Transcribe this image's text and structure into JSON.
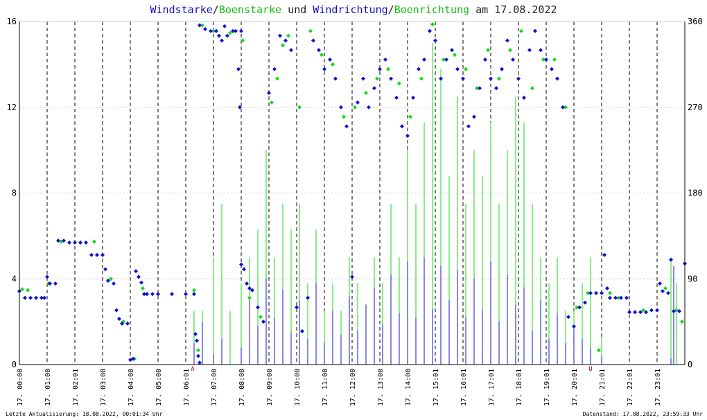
{
  "title": {
    "part1": "Windstarke",
    "sep1": "/",
    "part2": "Boenstarke",
    "part3": " und ",
    "part4": "Windrichtung",
    "sep2": "/",
    "part5": "Boenrichtung",
    "part6": " am 17.08.2022"
  },
  "footer": {
    "left": "Letzte Aktualisierung: 18.08.2022, 00:01:34 Uhr",
    "right": "Datenstand: 17.08.2022, 23:59:33 Uhr"
  },
  "colors": {
    "wind": "#1010d0",
    "gust": "#10dd10",
    "grid": "#c8c8c8",
    "hour_line": "#000000",
    "sun_marker": "#cc0000"
  },
  "chart_data": {
    "type": "scatter",
    "x_unit": "hour of day",
    "xlim": [
      0,
      24
    ],
    "y_left_label": "",
    "y_left_lim": [
      0,
      16
    ],
    "y_left_ticks": [
      0,
      4,
      8,
      12,
      16
    ],
    "y_right_lim": [
      0,
      360
    ],
    "y_right_ticks": [
      0,
      90,
      180,
      270,
      360
    ],
    "x_tick_labels": [
      "17. 00:00",
      "17. 01:00",
      "17. 02:01",
      "17. 03:00",
      "17. 04:00",
      "17. 05:00",
      "17. 06:01",
      "17. 07:00",
      "17. 08:00",
      "17. 09:00",
      "17. 10:00",
      "17. 11:00",
      "17. 12:00",
      "17. 13:00",
      "17. 14:00",
      "17. 15:01",
      "17. 16:01",
      "17. 17:01",
      "17. 18:01",
      "17. 19:01",
      "17. 20:01",
      "17. 21:01",
      "17. 22:01",
      "17. 23:01"
    ],
    "sun_markers": [
      {
        "label": "A",
        "hour": 6.25
      },
      {
        "label": "U",
        "hour": 20.6
      }
    ],
    "direction_series": [
      {
        "name": "Windrichtung",
        "points": [
          [
            0.0,
            77
          ],
          [
            0.2,
            70
          ],
          [
            0.4,
            70
          ],
          [
            0.6,
            70
          ],
          [
            0.8,
            70
          ],
          [
            0.9,
            70
          ],
          [
            1.0,
            92
          ],
          [
            1.1,
            85
          ],
          [
            1.3,
            85
          ],
          [
            1.4,
            130
          ],
          [
            1.6,
            130
          ],
          [
            1.8,
            128
          ],
          [
            2.0,
            128
          ],
          [
            2.2,
            128
          ],
          [
            2.4,
            128
          ],
          [
            2.6,
            115
          ],
          [
            2.8,
            115
          ],
          [
            3.0,
            115
          ],
          [
            3.1,
            100
          ],
          [
            3.2,
            88
          ],
          [
            3.4,
            85
          ],
          [
            3.5,
            57
          ],
          [
            3.6,
            48
          ],
          [
            3.7,
            43
          ],
          [
            3.9,
            43
          ],
          [
            4.0,
            5
          ],
          [
            4.1,
            6
          ],
          [
            4.2,
            98
          ],
          [
            4.3,
            92
          ],
          [
            4.4,
            86
          ],
          [
            4.5,
            74
          ],
          [
            4.6,
            74
          ],
          [
            4.8,
            74
          ],
          [
            5.0,
            74
          ],
          [
            5.5,
            74
          ],
          [
            6.0,
            74
          ],
          [
            6.3,
            74
          ],
          [
            6.35,
            32
          ],
          [
            6.4,
            25
          ],
          [
            6.45,
            9
          ],
          [
            6.5,
            2
          ],
          [
            6.5,
            356
          ],
          [
            6.7,
            352
          ],
          [
            6.9,
            350
          ],
          [
            7.1,
            350
          ],
          [
            7.2,
            345
          ],
          [
            7.3,
            340
          ],
          [
            7.4,
            355
          ],
          [
            7.5,
            345
          ],
          [
            7.7,
            350
          ],
          [
            7.8,
            350
          ],
          [
            8.0,
            350
          ],
          [
            7.9,
            310
          ],
          [
            7.95,
            270
          ],
          [
            8.0,
            105
          ],
          [
            8.1,
            100
          ],
          [
            8.2,
            85
          ],
          [
            8.3,
            80
          ],
          [
            8.4,
            78
          ],
          [
            8.6,
            60
          ],
          [
            8.8,
            45
          ],
          [
            9.0,
            285
          ],
          [
            9.2,
            310
          ],
          [
            9.4,
            345
          ],
          [
            9.6,
            340
          ],
          [
            9.8,
            330
          ],
          [
            10.0,
            60
          ],
          [
            10.2,
            35
          ],
          [
            10.4,
            70
          ],
          [
            10.6,
            340
          ],
          [
            10.8,
            330
          ],
          [
            11.0,
            310
          ],
          [
            11.2,
            320
          ],
          [
            11.4,
            300
          ],
          [
            11.6,
            270
          ],
          [
            11.8,
            250
          ],
          [
            12.0,
            92
          ],
          [
            12.2,
            275
          ],
          [
            12.4,
            300
          ],
          [
            12.6,
            270
          ],
          [
            12.8,
            290
          ],
          [
            13.0,
            310
          ],
          [
            13.2,
            320
          ],
          [
            13.4,
            300
          ],
          [
            13.6,
            280
          ],
          [
            13.8,
            250
          ],
          [
            14.0,
            240
          ],
          [
            14.2,
            280
          ],
          [
            14.4,
            310
          ],
          [
            14.6,
            320
          ],
          [
            14.8,
            350
          ],
          [
            15.0,
            340
          ],
          [
            15.2,
            300
          ],
          [
            15.4,
            320
          ],
          [
            15.6,
            330
          ],
          [
            15.8,
            310
          ],
          [
            16.0,
            300
          ],
          [
            16.2,
            250
          ],
          [
            16.4,
            260
          ],
          [
            16.6,
            290
          ],
          [
            16.8,
            320
          ],
          [
            17.0,
            300
          ],
          [
            17.2,
            290
          ],
          [
            17.4,
            310
          ],
          [
            17.6,
            340
          ],
          [
            17.8,
            320
          ],
          [
            18.0,
            300
          ],
          [
            18.2,
            280
          ],
          [
            18.4,
            330
          ],
          [
            18.6,
            350
          ],
          [
            18.8,
            330
          ],
          [
            19.0,
            320
          ],
          [
            19.2,
            310
          ],
          [
            19.4,
            300
          ],
          [
            19.6,
            270
          ],
          [
            19.8,
            50
          ],
          [
            20.0,
            40
          ],
          [
            20.2,
            60
          ],
          [
            20.4,
            65
          ],
          [
            20.6,
            75
          ],
          [
            20.8,
            75
          ],
          [
            21.0,
            75
          ],
          [
            21.1,
            115
          ],
          [
            21.2,
            80
          ],
          [
            21.3,
            70
          ],
          [
            21.5,
            70
          ],
          [
            21.7,
            70
          ],
          [
            21.9,
            70
          ],
          [
            22.0,
            55
          ],
          [
            22.2,
            55
          ],
          [
            22.4,
            55
          ],
          [
            22.6,
            55
          ],
          [
            22.8,
            57
          ],
          [
            23.0,
            57
          ],
          [
            23.1,
            85
          ],
          [
            23.2,
            77
          ],
          [
            23.4,
            75
          ],
          [
            23.5,
            110
          ],
          [
            23.6,
            56
          ],
          [
            23.8,
            56
          ],
          [
            24.0,
            106
          ]
        ]
      },
      {
        "name": "Boenrichtung",
        "points": [
          [
            0.1,
            79
          ],
          [
            0.3,
            78
          ],
          [
            1.05,
            85
          ],
          [
            1.5,
            129
          ],
          [
            2.7,
            129
          ],
          [
            3.3,
            90
          ],
          [
            3.75,
            45
          ],
          [
            4.15,
            6
          ],
          [
            4.45,
            80
          ],
          [
            6.3,
            78
          ],
          [
            6.45,
            15
          ],
          [
            6.6,
            356
          ],
          [
            7.0,
            350
          ],
          [
            7.6,
            348
          ],
          [
            8.05,
            340
          ],
          [
            8.3,
            70
          ],
          [
            8.7,
            50
          ],
          [
            9.1,
            275
          ],
          [
            9.3,
            300
          ],
          [
            9.5,
            335
          ],
          [
            9.7,
            345
          ],
          [
            10.1,
            270
          ],
          [
            10.5,
            350
          ],
          [
            10.9,
            325
          ],
          [
            11.3,
            315
          ],
          [
            11.7,
            260
          ],
          [
            12.1,
            270
          ],
          [
            12.5,
            285
          ],
          [
            12.9,
            300
          ],
          [
            13.3,
            310
          ],
          [
            13.7,
            295
          ],
          [
            14.1,
            260
          ],
          [
            14.5,
            300
          ],
          [
            14.9,
            357
          ],
          [
            15.3,
            320
          ],
          [
            15.7,
            325
          ],
          [
            16.1,
            310
          ],
          [
            16.5,
            290
          ],
          [
            16.9,
            330
          ],
          [
            17.3,
            300
          ],
          [
            17.7,
            330
          ],
          [
            18.1,
            350
          ],
          [
            18.5,
            290
          ],
          [
            18.9,
            320
          ],
          [
            19.3,
            320
          ],
          [
            19.7,
            270
          ],
          [
            20.1,
            60
          ],
          [
            20.5,
            75
          ],
          [
            20.9,
            15
          ],
          [
            21.3,
            75
          ],
          [
            21.6,
            70
          ],
          [
            22.5,
            57
          ],
          [
            23.3,
            80
          ],
          [
            23.7,
            57
          ],
          [
            23.9,
            45
          ]
        ]
      }
    ],
    "speed_series": [
      {
        "name": "Windstarke",
        "points": [
          [
            6.3,
            1.0
          ],
          [
            6.6,
            2.0
          ],
          [
            7.0,
            0.5
          ],
          [
            7.3,
            1.2
          ],
          [
            8.0,
            0.8
          ],
          [
            8.3,
            3.0
          ],
          [
            8.6,
            1.8
          ],
          [
            8.9,
            4.0
          ],
          [
            9.2,
            2.2
          ],
          [
            9.5,
            3.5
          ],
          [
            9.8,
            1.5
          ],
          [
            10.1,
            3.0
          ],
          [
            10.4,
            1.2
          ],
          [
            10.7,
            3.8
          ],
          [
            11.0,
            1.0
          ],
          [
            11.3,
            2.5
          ],
          [
            11.6,
            1.4
          ],
          [
            11.9,
            3.2
          ],
          [
            12.2,
            1.6
          ],
          [
            12.5,
            2.8
          ],
          [
            12.8,
            3.6
          ],
          [
            13.1,
            1.9
          ],
          [
            13.4,
            4.2
          ],
          [
            13.7,
            2.4
          ],
          [
            14.0,
            4.8
          ],
          [
            14.3,
            2.2
          ],
          [
            14.6,
            5.0
          ],
          [
            14.9,
            2.6
          ],
          [
            15.2,
            4.6
          ],
          [
            15.5,
            3.0
          ],
          [
            15.8,
            4.4
          ],
          [
            16.1,
            2.2
          ],
          [
            16.4,
            4.0
          ],
          [
            16.7,
            2.6
          ],
          [
            17.0,
            4.8
          ],
          [
            17.3,
            2.0
          ],
          [
            17.6,
            4.2
          ],
          [
            17.9,
            2.8
          ],
          [
            18.2,
            3.6
          ],
          [
            18.5,
            1.6
          ],
          [
            18.8,
            3.0
          ],
          [
            19.1,
            1.2
          ],
          [
            19.4,
            2.4
          ],
          [
            19.7,
            1.0
          ],
          [
            20.0,
            1.8
          ],
          [
            20.3,
            1.2
          ],
          [
            20.6,
            0.8
          ],
          [
            21.0,
            0.4
          ],
          [
            23.5,
            0.3
          ],
          [
            23.6,
            4.6
          ]
        ]
      },
      {
        "name": "Boenstarke",
        "points": [
          [
            6.3,
            2.5
          ],
          [
            6.6,
            2.5
          ],
          [
            7.0,
            5.0
          ],
          [
            7.3,
            7.5
          ],
          [
            7.6,
            2.5
          ],
          [
            8.0,
            3.8
          ],
          [
            8.3,
            5.0
          ],
          [
            8.6,
            6.3
          ],
          [
            8.9,
            10.0
          ],
          [
            9.2,
            5.0
          ],
          [
            9.5,
            7.5
          ],
          [
            9.8,
            6.3
          ],
          [
            10.1,
            7.5
          ],
          [
            10.4,
            3.8
          ],
          [
            10.7,
            6.3
          ],
          [
            11.0,
            2.5
          ],
          [
            11.3,
            3.8
          ],
          [
            11.6,
            2.5
          ],
          [
            11.9,
            5.0
          ],
          [
            12.2,
            3.8
          ],
          [
            12.5,
            2.5
          ],
          [
            12.8,
            5.0
          ],
          [
            13.1,
            3.8
          ],
          [
            13.4,
            7.5
          ],
          [
            13.7,
            5.0
          ],
          [
            14.0,
            10.0
          ],
          [
            14.3,
            7.5
          ],
          [
            14.6,
            11.3
          ],
          [
            14.9,
            15.0
          ],
          [
            15.2,
            13.8
          ],
          [
            15.5,
            8.8
          ],
          [
            15.8,
            12.5
          ],
          [
            16.1,
            7.5
          ],
          [
            16.4,
            10.0
          ],
          [
            16.7,
            8.8
          ],
          [
            17.0,
            11.3
          ],
          [
            17.3,
            7.5
          ],
          [
            17.6,
            10.0
          ],
          [
            17.9,
            12.5
          ],
          [
            18.2,
            11.3
          ],
          [
            18.5,
            7.5
          ],
          [
            18.8,
            5.0
          ],
          [
            19.1,
            3.8
          ],
          [
            19.4,
            5.0
          ],
          [
            19.7,
            2.5
          ],
          [
            20.0,
            2.5
          ],
          [
            20.3,
            3.8
          ],
          [
            20.6,
            5.0
          ],
          [
            21.0,
            1.3
          ],
          [
            23.5,
            5.0
          ],
          [
            23.7,
            3.8
          ]
        ]
      }
    ]
  }
}
